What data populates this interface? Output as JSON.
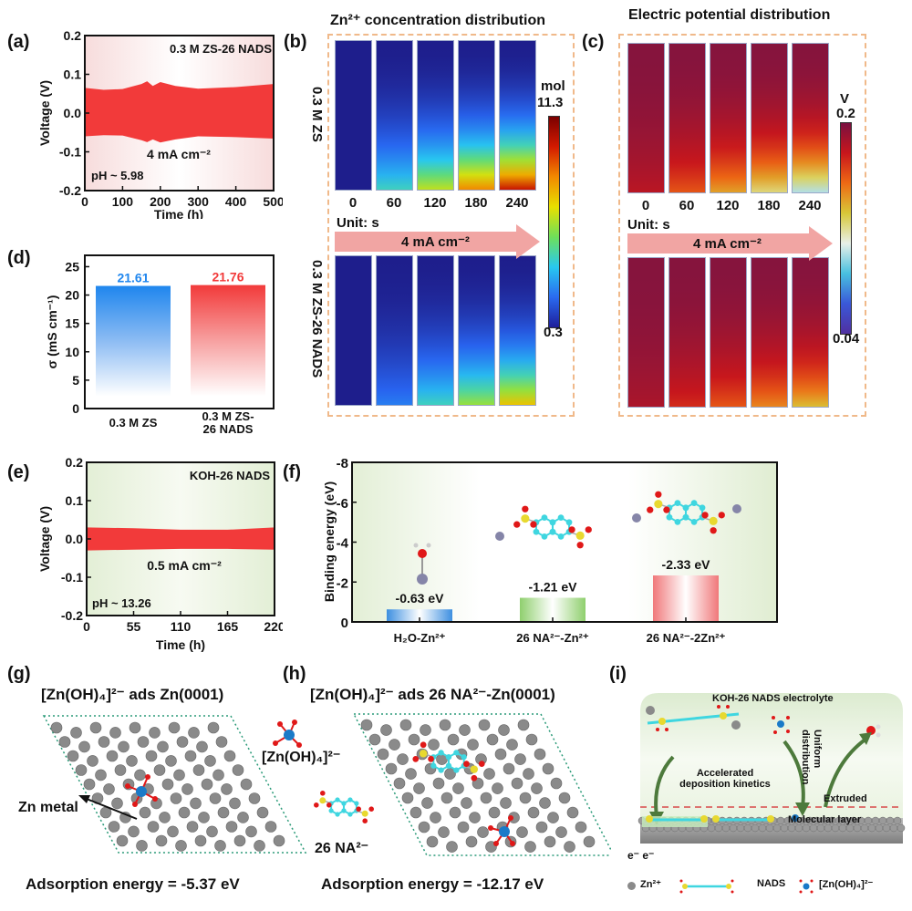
{
  "panels": {
    "a": {
      "label": "(a)"
    },
    "b": {
      "label": "(b)"
    },
    "c": {
      "label": "(c)"
    },
    "d": {
      "label": "(d)"
    },
    "e": {
      "label": "(e)"
    },
    "f": {
      "label": "(f)"
    },
    "g": {
      "label": "(g)"
    },
    "h": {
      "label": "(h)"
    },
    "i": {
      "label": "(i)"
    }
  },
  "chart_data": [
    {
      "id": "a",
      "type": "line",
      "title": "0.3 M ZS-26 NADS",
      "xlabel": "Time (h)",
      "ylabel": "Voltage (V)",
      "xlim": [
        0,
        500
      ],
      "ylim": [
        -0.2,
        0.2
      ],
      "xticks": [
        "0",
        "100",
        "200",
        "300",
        "400",
        "500"
      ],
      "yticks": [
        "0.2",
        "0.1",
        "0.0",
        "-0.1",
        "-0.2"
      ],
      "annotations": [
        "4 mA cm⁻²",
        "pH ~ 5.98"
      ],
      "series": [
        {
          "name": "voltage envelope",
          "color": "#f23a3a",
          "x": [
            0,
            50,
            100,
            150,
            165,
            180,
            200,
            240,
            300,
            400,
            500
          ],
          "upper": [
            0.065,
            0.06,
            0.062,
            0.075,
            0.082,
            0.07,
            0.08,
            0.07,
            0.063,
            0.067,
            0.075
          ],
          "lower": [
            -0.06,
            -0.057,
            -0.058,
            -0.07,
            -0.075,
            -0.068,
            -0.076,
            -0.068,
            -0.06,
            -0.062,
            -0.066
          ]
        }
      ]
    },
    {
      "id": "d",
      "type": "bar",
      "ylabel": "σ (mS cm⁻¹)",
      "ylim": [
        0,
        27
      ],
      "yticks": [
        "0",
        "5",
        "10",
        "15",
        "20",
        "25"
      ],
      "categories": [
        "0.3 M ZS",
        "0.3 M ZS-26 NADS"
      ],
      "category_lines": [
        [
          "0.3 M ZS"
        ],
        [
          "0.3 M ZS-",
          "26 NADS"
        ]
      ],
      "values": [
        21.61,
        21.76
      ],
      "value_labels": [
        "21.61",
        "21.76"
      ],
      "colors": [
        "#1f86ee",
        "#f23a3a"
      ]
    },
    {
      "id": "e",
      "type": "line",
      "title": "KOH-26 NADS",
      "xlabel": "Time (h)",
      "ylabel": "Voltage (V)",
      "xlim": [
        0,
        220
      ],
      "ylim": [
        -0.2,
        0.2
      ],
      "xticks": [
        "0",
        "55",
        "110",
        "165",
        "220"
      ],
      "yticks": [
        "0.2",
        "0.1",
        "0.0",
        "-0.1",
        "-0.2"
      ],
      "annotations": [
        "0.5 mA cm⁻²",
        "pH ~ 13.26"
      ],
      "series": [
        {
          "name": "voltage envelope",
          "color": "#f23a3a",
          "x": [
            0,
            55,
            110,
            165,
            220
          ],
          "upper": [
            0.03,
            0.028,
            0.024,
            0.024,
            0.03
          ],
          "lower": [
            -0.03,
            -0.028,
            -0.026,
            -0.026,
            -0.028
          ]
        }
      ]
    },
    {
      "id": "f",
      "type": "bar",
      "ylabel": "Binding energy (eV)",
      "ylim": [
        0,
        -8
      ],
      "yticks": [
        "0",
        "-2",
        "-4",
        "-6",
        "-8"
      ],
      "categories": [
        "H₂O-Zn²⁺",
        "26 NA²⁻-Zn²⁺",
        "26 NA²⁻-2Zn²⁺"
      ],
      "values": [
        -0.63,
        -1.21,
        -2.33
      ],
      "value_labels": [
        "-0.63 eV",
        "-1.21 eV",
        "-2.33 eV"
      ],
      "colors": [
        "#3d8fe0",
        "#8fcf6e",
        "#f0787a"
      ]
    },
    {
      "id": "b",
      "type": "heatmap",
      "title": "Zn²⁺ concentration distribution",
      "rows": [
        "0.3 M ZS",
        "0.3 M ZS-26 NADS"
      ],
      "columns": [
        "0",
        "60",
        "120",
        "180",
        "240"
      ],
      "unit_label": "Unit: s",
      "arrow_label": "4 mA cm⁻²",
      "colorbar": {
        "unit": "mol",
        "max": "11.3",
        "min": "0.3"
      },
      "bottom_intensity": [
        [
          0.0,
          0.45,
          0.65,
          0.85,
          1.0
        ],
        [
          0.0,
          0.25,
          0.45,
          0.6,
          0.75
        ]
      ]
    },
    {
      "id": "c",
      "type": "heatmap",
      "title": "Electric potential distribution",
      "columns": [
        "0",
        "60",
        "120",
        "180",
        "240"
      ],
      "unit_label": "Unit: s",
      "arrow_label": "4 mA cm⁻²",
      "colorbar": {
        "unit": "V",
        "max": "0.2",
        "min": "0.04"
      },
      "bottom_intensity": [
        [
          0.2,
          0.4,
          0.55,
          0.68,
          0.82
        ],
        [
          0.15,
          0.3,
          0.4,
          0.5,
          0.6
        ]
      ]
    }
  ],
  "panel_g": {
    "title": "[Zn(OH)₄]²⁻ ads Zn(0001)",
    "zn_metal_label": "Zn metal",
    "energy": "Adsorption energy = -5.37 eV"
  },
  "panel_h": {
    "title": "[Zn(OH)₄]²⁻ ads 26 NA²⁻-Zn(0001)",
    "zincate_label": "[Zn(OH)₄]²⁻",
    "na_label": "26 NA²⁻",
    "energy": "Adsorption energy = -12.17 eV"
  },
  "panel_i": {
    "electrolyte": "KOH-26 NADS electrolyte",
    "accelerated": [
      "Accelerated",
      "deposition kinetics"
    ],
    "uniform": [
      "Uniform",
      "distribution"
    ],
    "extruded": "Extruded",
    "molecular_layer": "Molecular layer",
    "electrons": "e⁻ e⁻",
    "legend": {
      "zn": "Zn²⁺",
      "nads": "NADS",
      "zincate": "[Zn(OH)₄]²⁻"
    }
  },
  "colors": {
    "red": "#f23a3a",
    "blue": "#1f86ee",
    "dash": "#f0b98a",
    "arrow": "#f1a5a3",
    "zn_gray": "#8a8a8a",
    "cyan": "#3fd6e0",
    "yellow": "#e8d930",
    "oxygen": "#e01818",
    "green_arrow": "#4d7a3c"
  }
}
